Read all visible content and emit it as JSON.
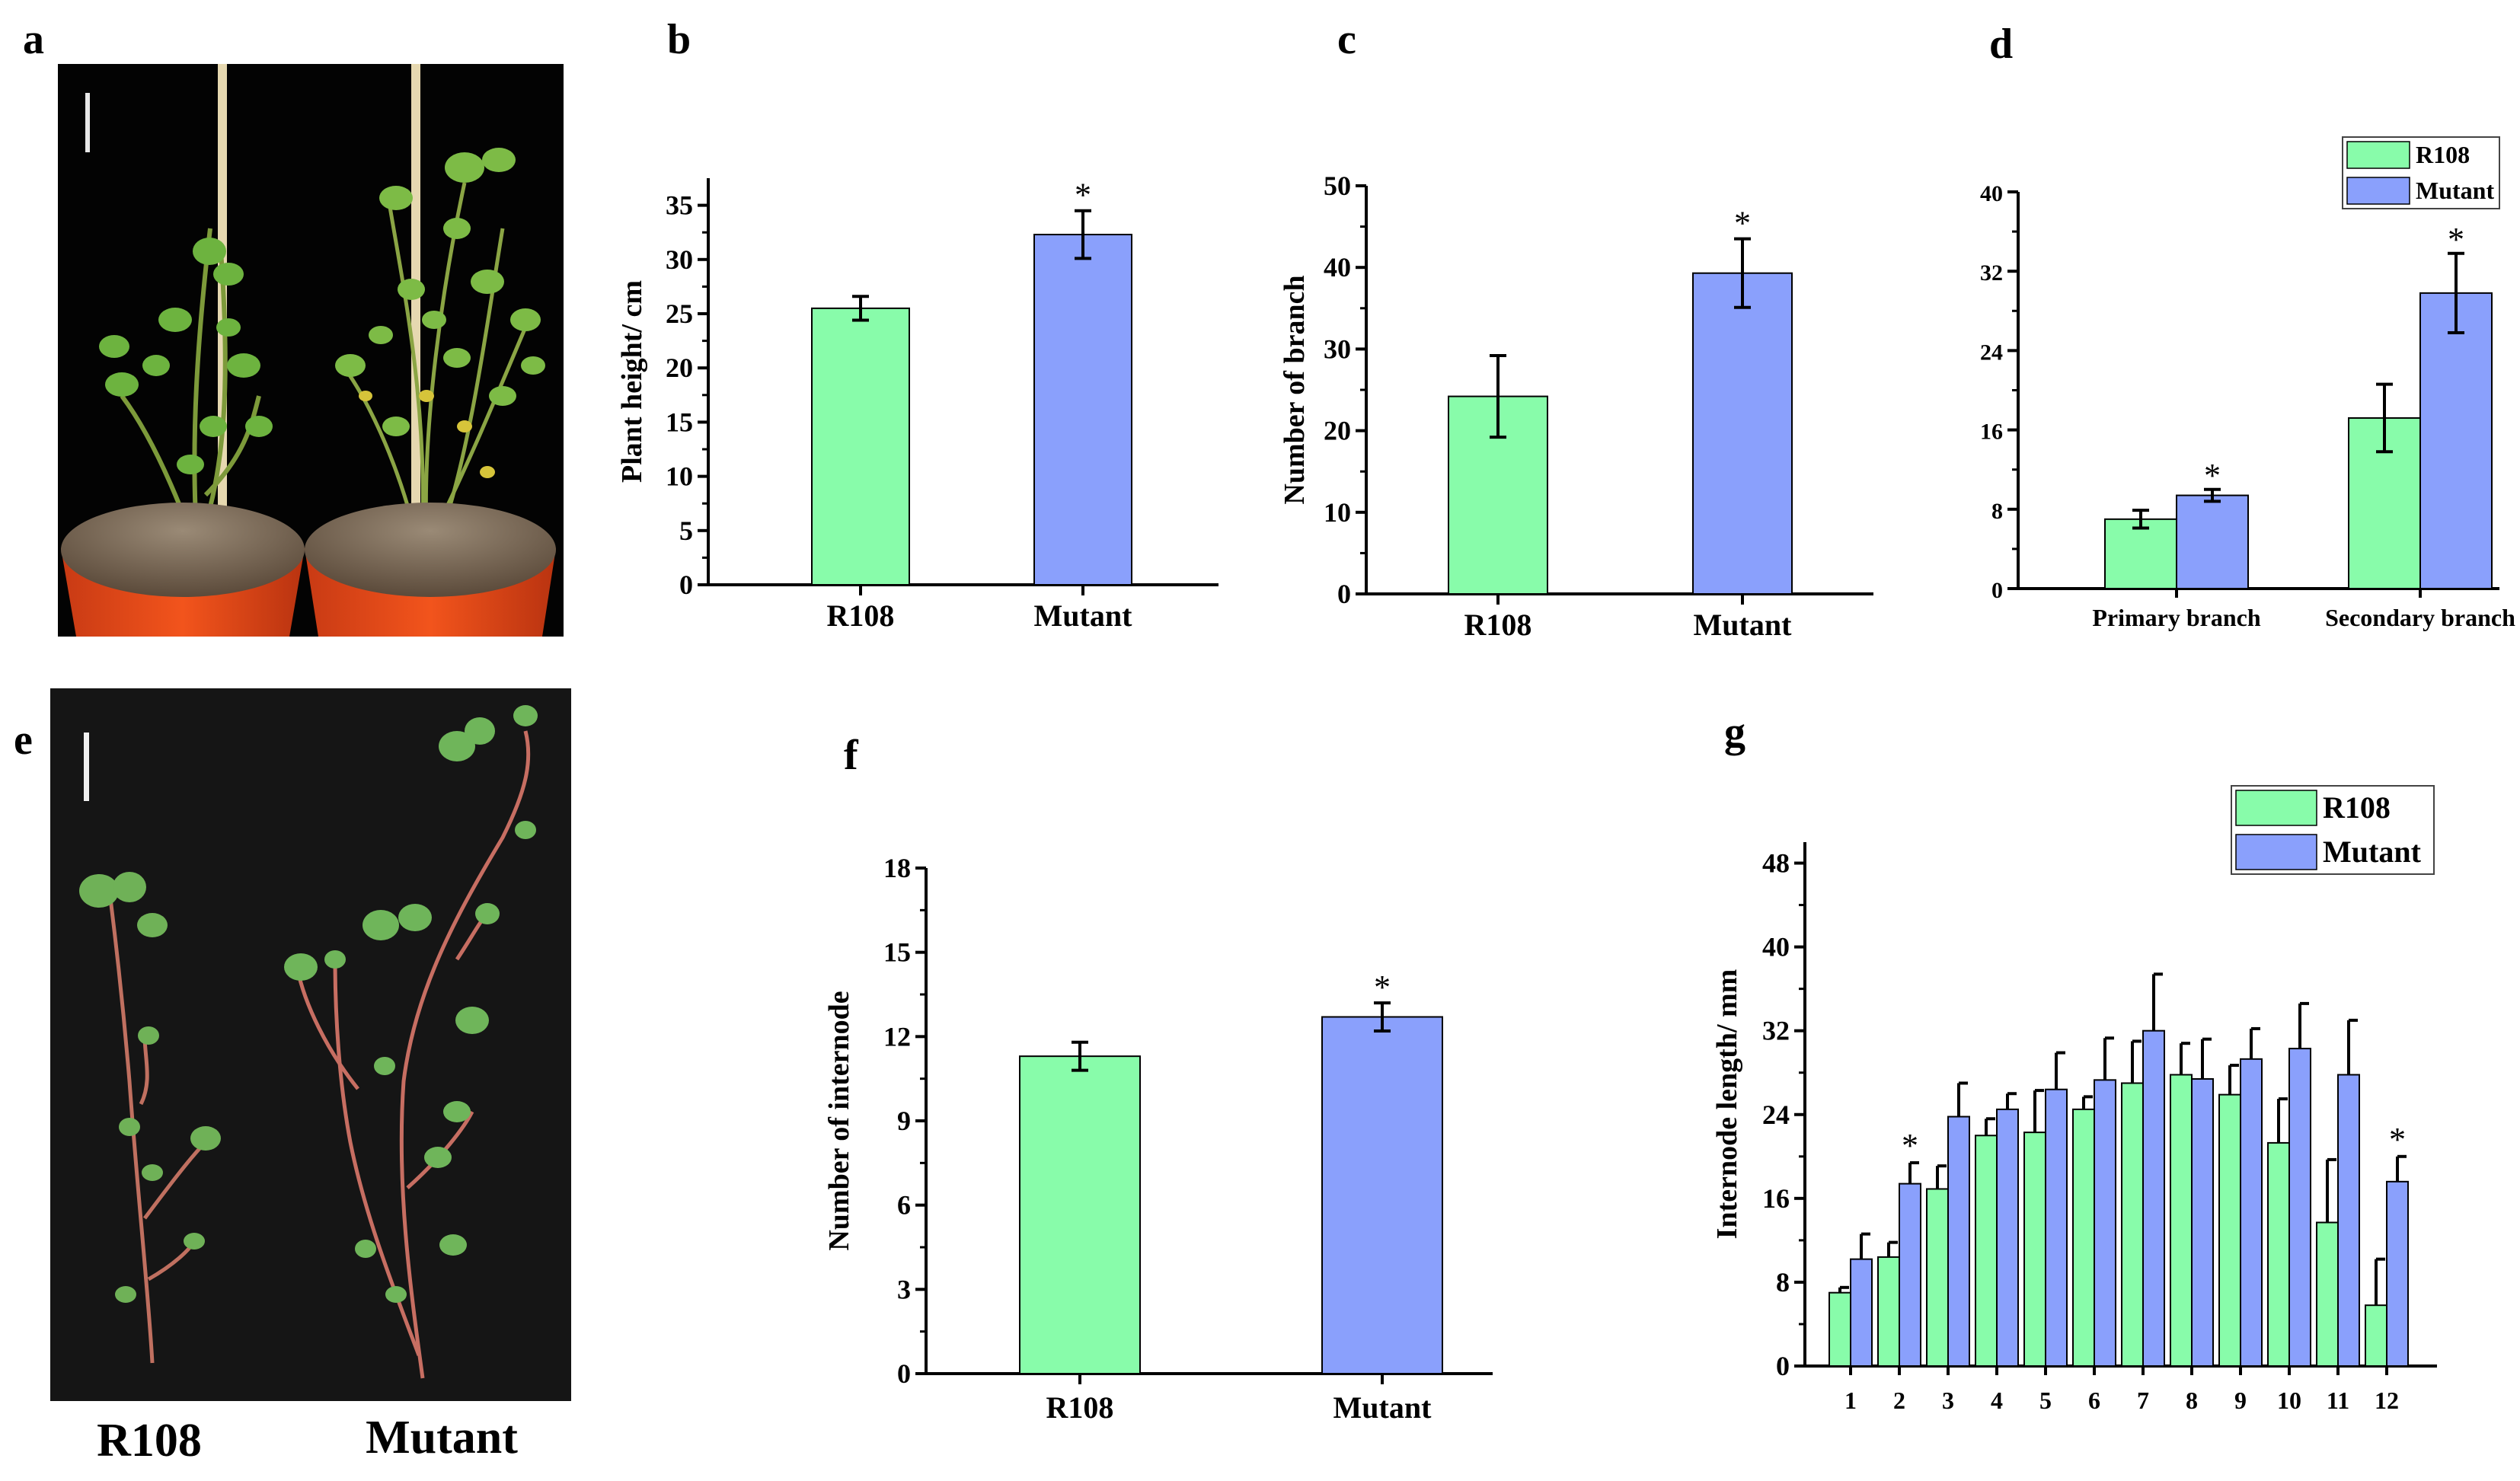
{
  "colors": {
    "r108": "#88fcaa",
    "mutant": "#8aa0fc"
  },
  "panels": {
    "a": "a",
    "b": "b",
    "c": "c",
    "d": "d",
    "e": "e",
    "f": "f",
    "g": "g"
  },
  "photo_e": {
    "left_label": "R108",
    "right_label": "Mutant"
  },
  "chart_data": [
    {
      "panel": "b",
      "type": "bar",
      "ylabel": "Plant height/ cm",
      "categories": [
        "R108",
        "Mutant"
      ],
      "values": [
        25.5,
        32.3
      ],
      "errors": [
        1.1,
        2.2
      ],
      "significance": [
        "",
        "*"
      ],
      "ylim": [
        0,
        37.5
      ],
      "yticks": [
        "0",
        "5",
        "10",
        "15",
        "20",
        "25",
        "30",
        "35"
      ]
    },
    {
      "panel": "c",
      "type": "bar",
      "ylabel": "Number of branch",
      "categories": [
        "R108",
        "Mutant"
      ],
      "values": [
        24.2,
        39.3
      ],
      "errors": [
        5.0,
        4.2
      ],
      "significance": [
        "",
        "*"
      ],
      "ylim": [
        0,
        50
      ],
      "yticks": [
        "0",
        "10",
        "20",
        "30",
        "40",
        "50"
      ]
    },
    {
      "panel": "d",
      "type": "bar",
      "ylabel": "",
      "categories": [
        "Primary branch",
        "Secondary branch"
      ],
      "series": [
        {
          "name": "R108",
          "values": [
            7.0,
            17.2
          ],
          "errors": [
            0.9,
            3.4
          ],
          "significance": [
            "",
            ""
          ]
        },
        {
          "name": "Mutant",
          "values": [
            9.4,
            29.8
          ],
          "errors": [
            0.6,
            4.0
          ],
          "significance": [
            "*",
            "*"
          ]
        }
      ],
      "legend": [
        "R108",
        "Mutant"
      ],
      "ylim": [
        0,
        40
      ],
      "yticks": [
        "0",
        "8",
        "16",
        "24",
        "32",
        "40"
      ]
    },
    {
      "panel": "f",
      "type": "bar",
      "ylabel": "Number of internode",
      "categories": [
        "R108",
        "Mutant"
      ],
      "values": [
        11.3,
        12.7
      ],
      "errors": [
        0.5,
        0.5
      ],
      "significance": [
        "",
        "*"
      ],
      "ylim": [
        0,
        18
      ],
      "yticks": [
        "0",
        "3",
        "6",
        "9",
        "12",
        "15",
        "18"
      ]
    },
    {
      "panel": "g",
      "type": "bar",
      "ylabel": "Internode length/ mm",
      "categories": [
        "1",
        "2",
        "3",
        "4",
        "5",
        "6",
        "7",
        "8",
        "9",
        "10",
        "11",
        "12"
      ],
      "series": [
        {
          "name": "R108",
          "values": [
            7.0,
            10.4,
            16.9,
            22.0,
            22.3,
            24.5,
            27.0,
            27.8,
            25.9,
            21.3,
            13.7,
            5.8
          ],
          "errors": [
            0.5,
            1.4,
            2.2,
            1.6,
            4.0,
            1.2,
            4.0,
            3.0,
            2.8,
            4.2,
            6.0,
            4.4
          ]
        },
        {
          "name": "Mutant",
          "values": [
            10.2,
            17.4,
            23.8,
            24.5,
            26.4,
            27.3,
            32.0,
            27.4,
            29.3,
            30.3,
            27.8,
            17.6
          ],
          "errors": [
            2.4,
            2.0,
            3.2,
            1.5,
            3.5,
            4.0,
            5.4,
            3.8,
            2.9,
            4.3,
            5.2,
            2.4
          ]
        }
      ],
      "significance_positions": [
        "2",
        "12"
      ],
      "significance_mark": "*",
      "legend": [
        "R108",
        "Mutant"
      ],
      "ylim": [
        0,
        50
      ],
      "yticks": [
        "0",
        "8",
        "16",
        "24",
        "32",
        "40",
        "48"
      ]
    }
  ]
}
